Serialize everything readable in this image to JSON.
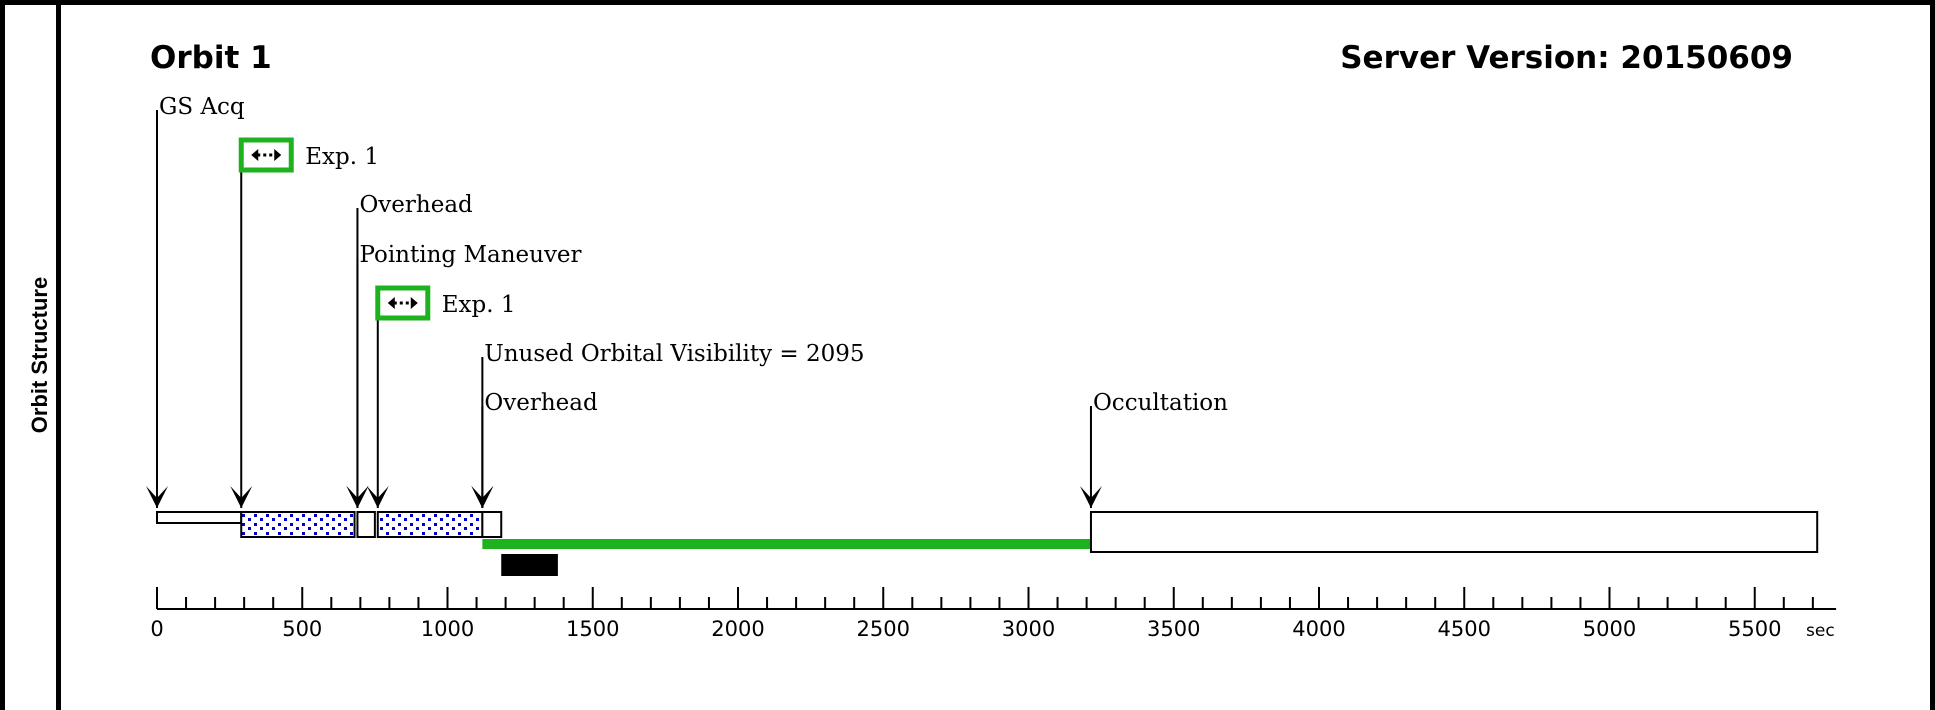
{
  "side_label": "Orbit Structure",
  "orbit_title": "Orbit 1",
  "server_version": "Server Version: 20150609",
  "annotations": [
    {
      "text": "GS Acq",
      "t": 0
    },
    {
      "text": "Exp. 1",
      "t": 290,
      "icon": "expand-arrows-icon"
    },
    {
      "text": "Overhead",
      "t": 690
    },
    {
      "text": "Pointing Maneuver",
      "t": 690
    },
    {
      "text": "Exp. 1",
      "t": 760,
      "icon": "expand-arrows-icon"
    },
    {
      "text": "Unused Orbital Visibility = 2095",
      "t": 1120
    },
    {
      "text": "Overhead",
      "t": 1120
    },
    {
      "text": "Occultation",
      "t": 3215
    }
  ],
  "segments": [
    {
      "name": "gs-acq",
      "start": 0,
      "end": 290,
      "style": "thin"
    },
    {
      "name": "exposure-1a",
      "start": 290,
      "end": 680,
      "style": "exposure"
    },
    {
      "name": "overhead-maneuver",
      "start": 690,
      "end": 750,
      "style": "open"
    },
    {
      "name": "exposure-1b",
      "start": 760,
      "end": 1120,
      "style": "exposure"
    },
    {
      "name": "overhead",
      "start": 1120,
      "end": 1185,
      "style": "open"
    },
    {
      "name": "unused-visibility",
      "start": 1120,
      "end": 3215,
      "style": "green"
    },
    {
      "name": "occultation",
      "start": 3215,
      "end": 5715,
      "style": "open"
    },
    {
      "name": "black-marker",
      "start": 1185,
      "end": 1380,
      "style": "black"
    }
  ],
  "axis": {
    "min": 0,
    "max": 5780,
    "major_ticks": [
      0,
      500,
      1000,
      1500,
      2000,
      2500,
      3000,
      3500,
      4000,
      4500,
      5000,
      5500
    ],
    "tick_labels": [
      "0",
      "500",
      "1000",
      "1500",
      "2000",
      "2500",
      "3000",
      "3500",
      "4000",
      "4500",
      "5000",
      "5500"
    ],
    "minor_step": 100,
    "unit": "sec"
  },
  "colors": {
    "green": "#1fb21f",
    "exposure_dots": "#0000cc",
    "black": "#000000"
  }
}
